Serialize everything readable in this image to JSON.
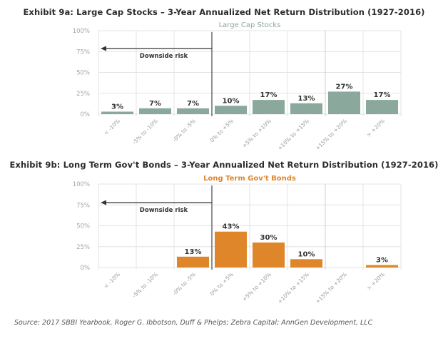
{
  "chart_data": [
    {
      "type": "bar",
      "title": "Exhibit 9a: Large Cap Stocks – 3-Year Annualized Net Return Distribution (1927-2016)",
      "subtitle": "Large Cap Stocks",
      "categories": [
        "< -10%",
        "-5% to -10%",
        "-0% to -5%",
        "0% to +5%",
        "+5% to +10%",
        "+10% to +15%",
        "+15% to +20%",
        "> +20%"
      ],
      "values": [
        3,
        7,
        7,
        10,
        17,
        13,
        27,
        17
      ],
      "value_labels": [
        "3%",
        "7%",
        "7%",
        "10%",
        "17%",
        "13%",
        "27%",
        "17%"
      ],
      "yticks": [
        "0%",
        "25%",
        "50%",
        "75%",
        "100%"
      ],
      "ylim": [
        0,
        100
      ],
      "xlabel": "",
      "ylabel": "",
      "grid": true,
      "annotation": "Downside risk",
      "divider_after_category": 3,
      "bar_color": "#8aa89c",
      "subtitle_color": "#8aa89c"
    },
    {
      "type": "bar",
      "title": "Exhibit 9b: Long Term Gov't Bonds – 3-Year Annualized Net Return Distribution (1927-2016)",
      "subtitle": "Long Term Gov't Bonds",
      "categories": [
        "< -10%",
        "-5% to -10%",
        "-0% to -5%",
        "0% to +5%",
        "+5% to +10%",
        "+10% to +15%",
        "+15% to +20%",
        "> +20%"
      ],
      "values": [
        0,
        0,
        13,
        43,
        30,
        10,
        0,
        3
      ],
      "value_labels": [
        "",
        "",
        "13%",
        "43%",
        "30%",
        "10%",
        "",
        "3%"
      ],
      "yticks": [
        "0%",
        "25%",
        "50%",
        "75%",
        "100%"
      ],
      "ylim": [
        0,
        100
      ],
      "xlabel": "",
      "ylabel": "",
      "grid": true,
      "annotation": "Downside risk",
      "divider_after_category": 3,
      "bar_color": "#e0862a",
      "subtitle_color": "#e0862a"
    }
  ],
  "source": "Source: 2017 SBBI Yearbook, Roger G. Ibbotson, Duff & Phelps; Zebra Capital; AnnGen Development, LLC"
}
